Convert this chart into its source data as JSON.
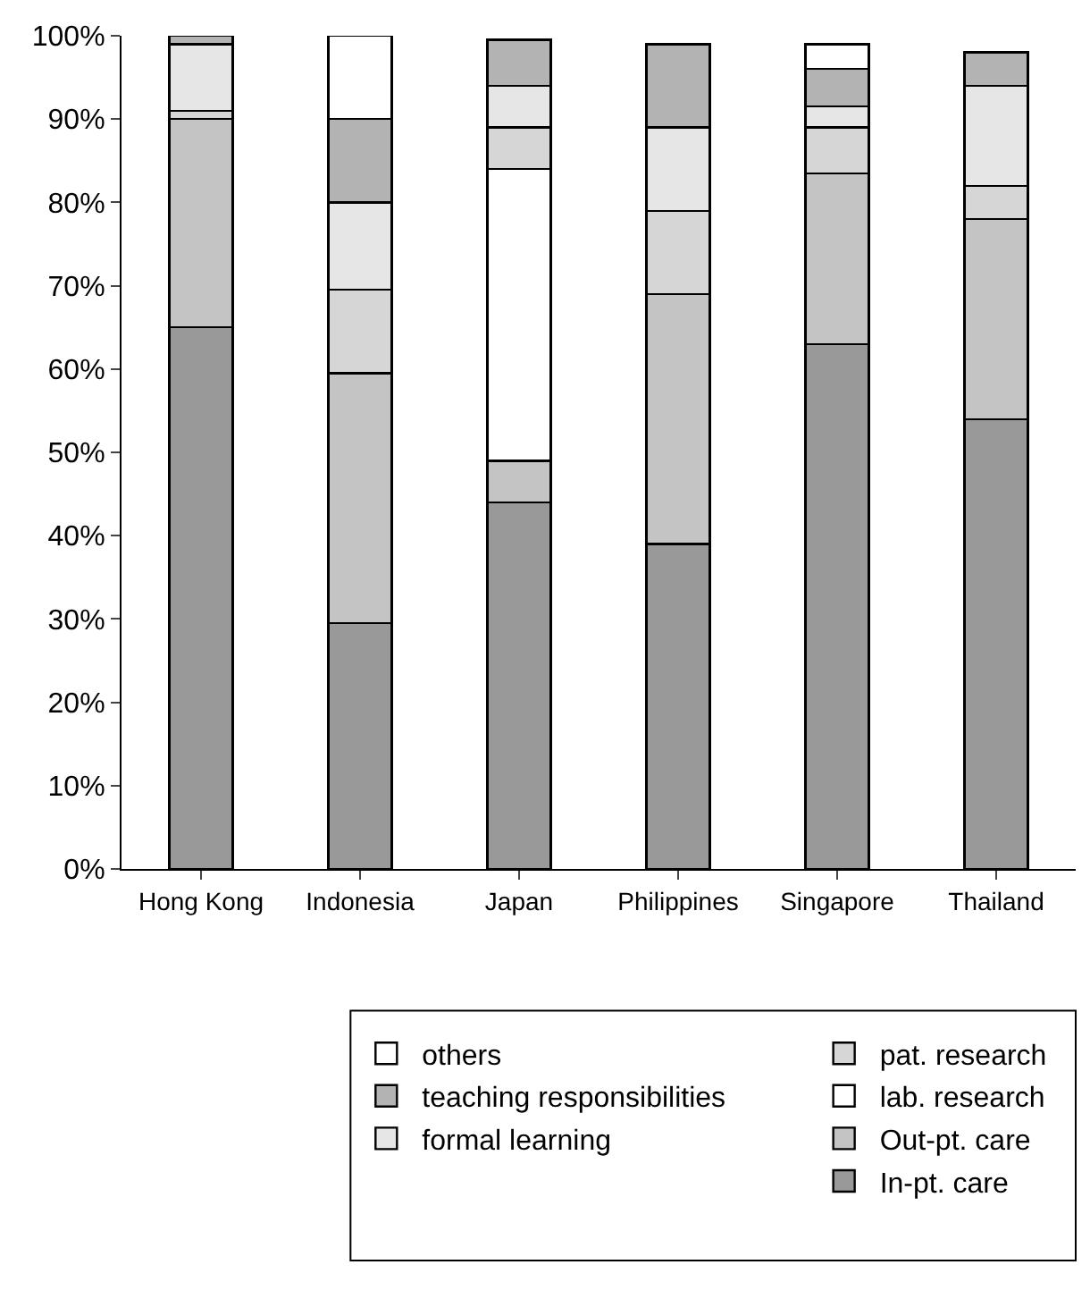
{
  "chart_data": {
    "type": "bar",
    "stacked": true,
    "categories": [
      "Hong Kong",
      "Indonesia",
      "Japan",
      "Philippines",
      "Singapore",
      "Thailand"
    ],
    "series": [
      {
        "name": "In-pt. care",
        "color": "#999999",
        "values": [
          65,
          29.5,
          44,
          39,
          63,
          54
        ]
      },
      {
        "name": "Out-pt. care",
        "color": "#c4c4c4",
        "values": [
          25,
          30,
          5,
          30,
          20.5,
          24
        ]
      },
      {
        "name": "lab. research",
        "color": "#ffffff",
        "values": [
          null,
          null,
          35,
          null,
          null,
          null
        ]
      },
      {
        "name": "pat. research",
        "color": "#d6d6d6",
        "values": [
          1,
          10,
          5,
          10,
          5.5,
          4
        ]
      },
      {
        "name": "formal learning",
        "color": "#e6e6e6",
        "values": [
          8,
          10.5,
          5,
          10,
          2.5,
          12
        ]
      },
      {
        "name": "teaching responsibilities",
        "color": "#b3b3b3",
        "values": [
          1,
          10,
          5.5,
          10,
          4.5,
          4
        ]
      },
      {
        "name": "others",
        "color": "#ffffff",
        "values": [
          null,
          10,
          null,
          null,
          3,
          null
        ]
      }
    ],
    "ylim": [
      0,
      100
    ],
    "yticks": [
      {
        "value": 0,
        "label": "0%"
      },
      {
        "value": 10,
        "label": "10%"
      },
      {
        "value": 20,
        "label": "20%"
      },
      {
        "value": 30,
        "label": "30%"
      },
      {
        "value": 40,
        "label": "40%"
      },
      {
        "value": 50,
        "label": "50%"
      },
      {
        "value": 60,
        "label": "60%"
      },
      {
        "value": 70,
        "label": "70%"
      },
      {
        "value": 80,
        "label": "80%"
      },
      {
        "value": 90,
        "label": "90%"
      },
      {
        "value": 100,
        "label": "100%"
      }
    ],
    "legend": "bottom right"
  }
}
